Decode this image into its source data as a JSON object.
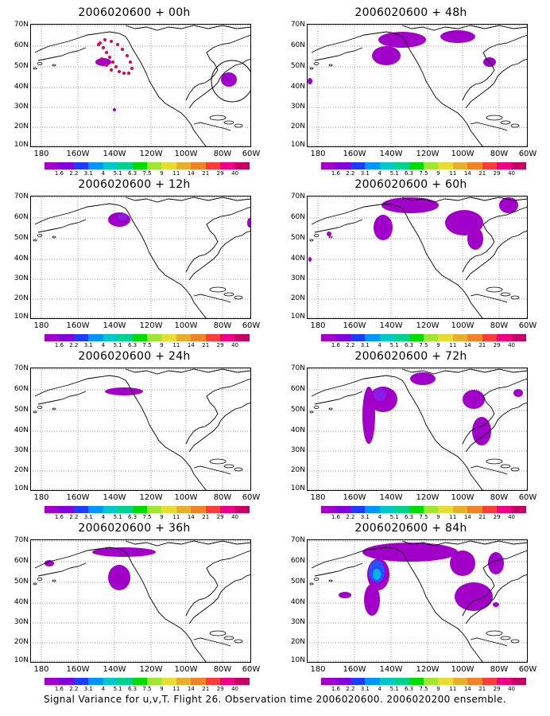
{
  "panels": [
    {
      "title": "2006020600 + 00h",
      "col": 0,
      "row": 0
    },
    {
      "title": "2006020600 + 48h",
      "col": 1,
      "row": 0
    },
    {
      "title": "2006020600 + 12h",
      "col": 0,
      "row": 1
    },
    {
      "title": "2006020600 + 60h",
      "col": 1,
      "row": 1
    },
    {
      "title": "2006020600 + 24h",
      "col": 0,
      "row": 2
    },
    {
      "title": "2006020600 + 72h",
      "col": 1,
      "row": 2
    },
    {
      "title": "2006020600 + 36h",
      "col": 0,
      "row": 3
    },
    {
      "title": "2006020600 + 84h",
      "col": 1,
      "row": 3
    }
  ],
  "axes": {
    "lon_labels": [
      "180",
      "160W",
      "140W",
      "120W",
      "100W",
      "80W",
      "60W"
    ],
    "lat_labels": [
      "70N",
      "60N",
      "50N",
      "40N",
      "30N",
      "20N",
      "10N"
    ],
    "lon_range": [
      -190,
      -60
    ],
    "lat_range": [
      10,
      70
    ]
  },
  "colorbar": {
    "levels": [
      "1.6",
      "2.2",
      "3.1",
      "4",
      "5.1",
      "6.3",
      "7.5",
      "9",
      "11",
      "14",
      "21",
      "29",
      "40"
    ],
    "colors": [
      "#a000c8",
      "#8200dc",
      "#1e3cff",
      "#0096ff",
      "#00c8c8",
      "#00d28c",
      "#00dc00",
      "#a0e632",
      "#e6dc32",
      "#e6af2d",
      "#f08228",
      "#fa3c3c",
      "#f00082",
      "#c80064"
    ]
  },
  "caption": "Signal Variance for u,v,T. Flight 26. Observation time 2006020600. 2006020200 ensemble."
}
